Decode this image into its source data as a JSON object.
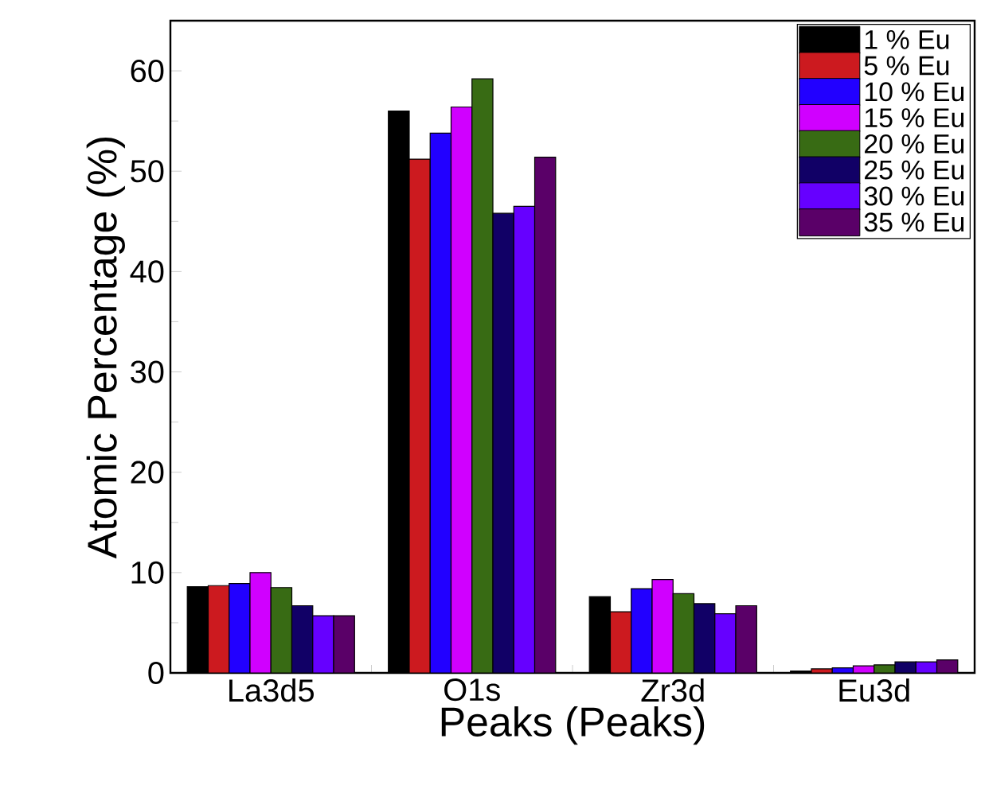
{
  "chart_data": {
    "type": "bar",
    "xlabel": "Peaks (Peaks)",
    "ylabel": "Atomic Percentage (%)",
    "categories": [
      "La3d5",
      "O1s",
      "Zr3d",
      "Eu3d"
    ],
    "series": [
      {
        "name": "1 % Eu",
        "color": "#000000",
        "values": [
          8.6,
          56.0,
          7.6,
          0.2
        ]
      },
      {
        "name": "5 % Eu",
        "color": "#cc1a1f",
        "values": [
          8.7,
          51.2,
          6.1,
          0.4
        ]
      },
      {
        "name": "10 % Eu",
        "color": "#2200ff",
        "values": [
          8.9,
          53.8,
          8.4,
          0.5
        ]
      },
      {
        "name": "15 % Eu",
        "color": "#d000ff",
        "values": [
          10.0,
          56.4,
          9.3,
          0.7
        ]
      },
      {
        "name": "20 % Eu",
        "color": "#386b14",
        "values": [
          8.5,
          59.2,
          7.9,
          0.8
        ]
      },
      {
        "name": "25 % Eu",
        "color": "#110066",
        "values": [
          6.7,
          45.8,
          6.9,
          1.1
        ]
      },
      {
        "name": "30 % Eu",
        "color": "#6600ff",
        "values": [
          5.7,
          46.5,
          5.9,
          1.1
        ]
      },
      {
        "name": "35 % Eu",
        "color": "#5a0068",
        "values": [
          5.7,
          51.4,
          6.7,
          1.3
        ]
      }
    ],
    "ylim": [
      0,
      65
    ],
    "yticks": [
      0,
      10,
      20,
      30,
      40,
      50,
      60
    ],
    "legend": "top right"
  }
}
